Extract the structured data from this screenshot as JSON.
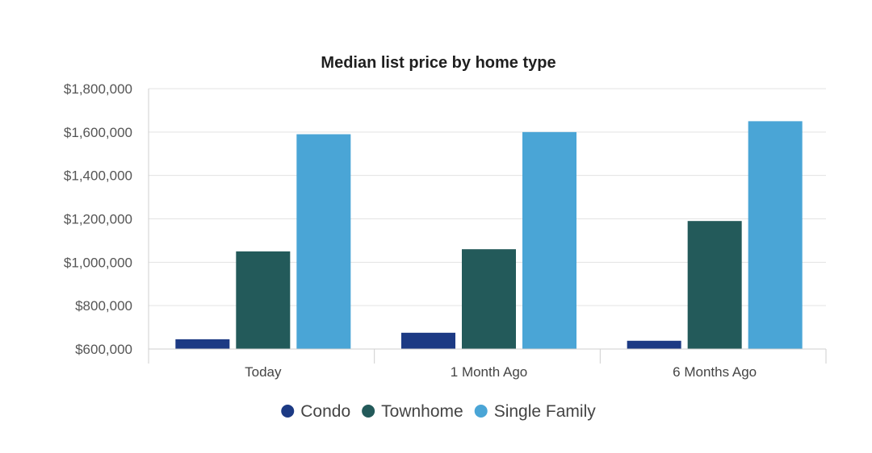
{
  "chart_data": {
    "type": "bar",
    "title": "Median list price by home type",
    "xlabel": "",
    "ylabel": "",
    "categories": [
      "Today",
      "1 Month Ago",
      "6 Months Ago"
    ],
    "series": [
      {
        "name": "Condo",
        "color": "#1c3a84",
        "values": [
          645000,
          675000,
          638000
        ]
      },
      {
        "name": "Townhome",
        "color": "#235a5a",
        "values": [
          1050000,
          1060000,
          1190000
        ]
      },
      {
        "name": "Single Family",
        "color": "#4aa5d6",
        "values": [
          1590000,
          1600000,
          1650000
        ]
      }
    ],
    "ylim": [
      600000,
      1800000
    ],
    "yticks": [
      600000,
      800000,
      1000000,
      1200000,
      1400000,
      1600000,
      1800000
    ],
    "ytick_labels": [
      "$600,000",
      "$800,000",
      "$1,000,000",
      "$1,200,000",
      "$1,400,000",
      "$1,600,000",
      "$1,800,000"
    ],
    "grid": true,
    "legend_position": "bottom"
  }
}
